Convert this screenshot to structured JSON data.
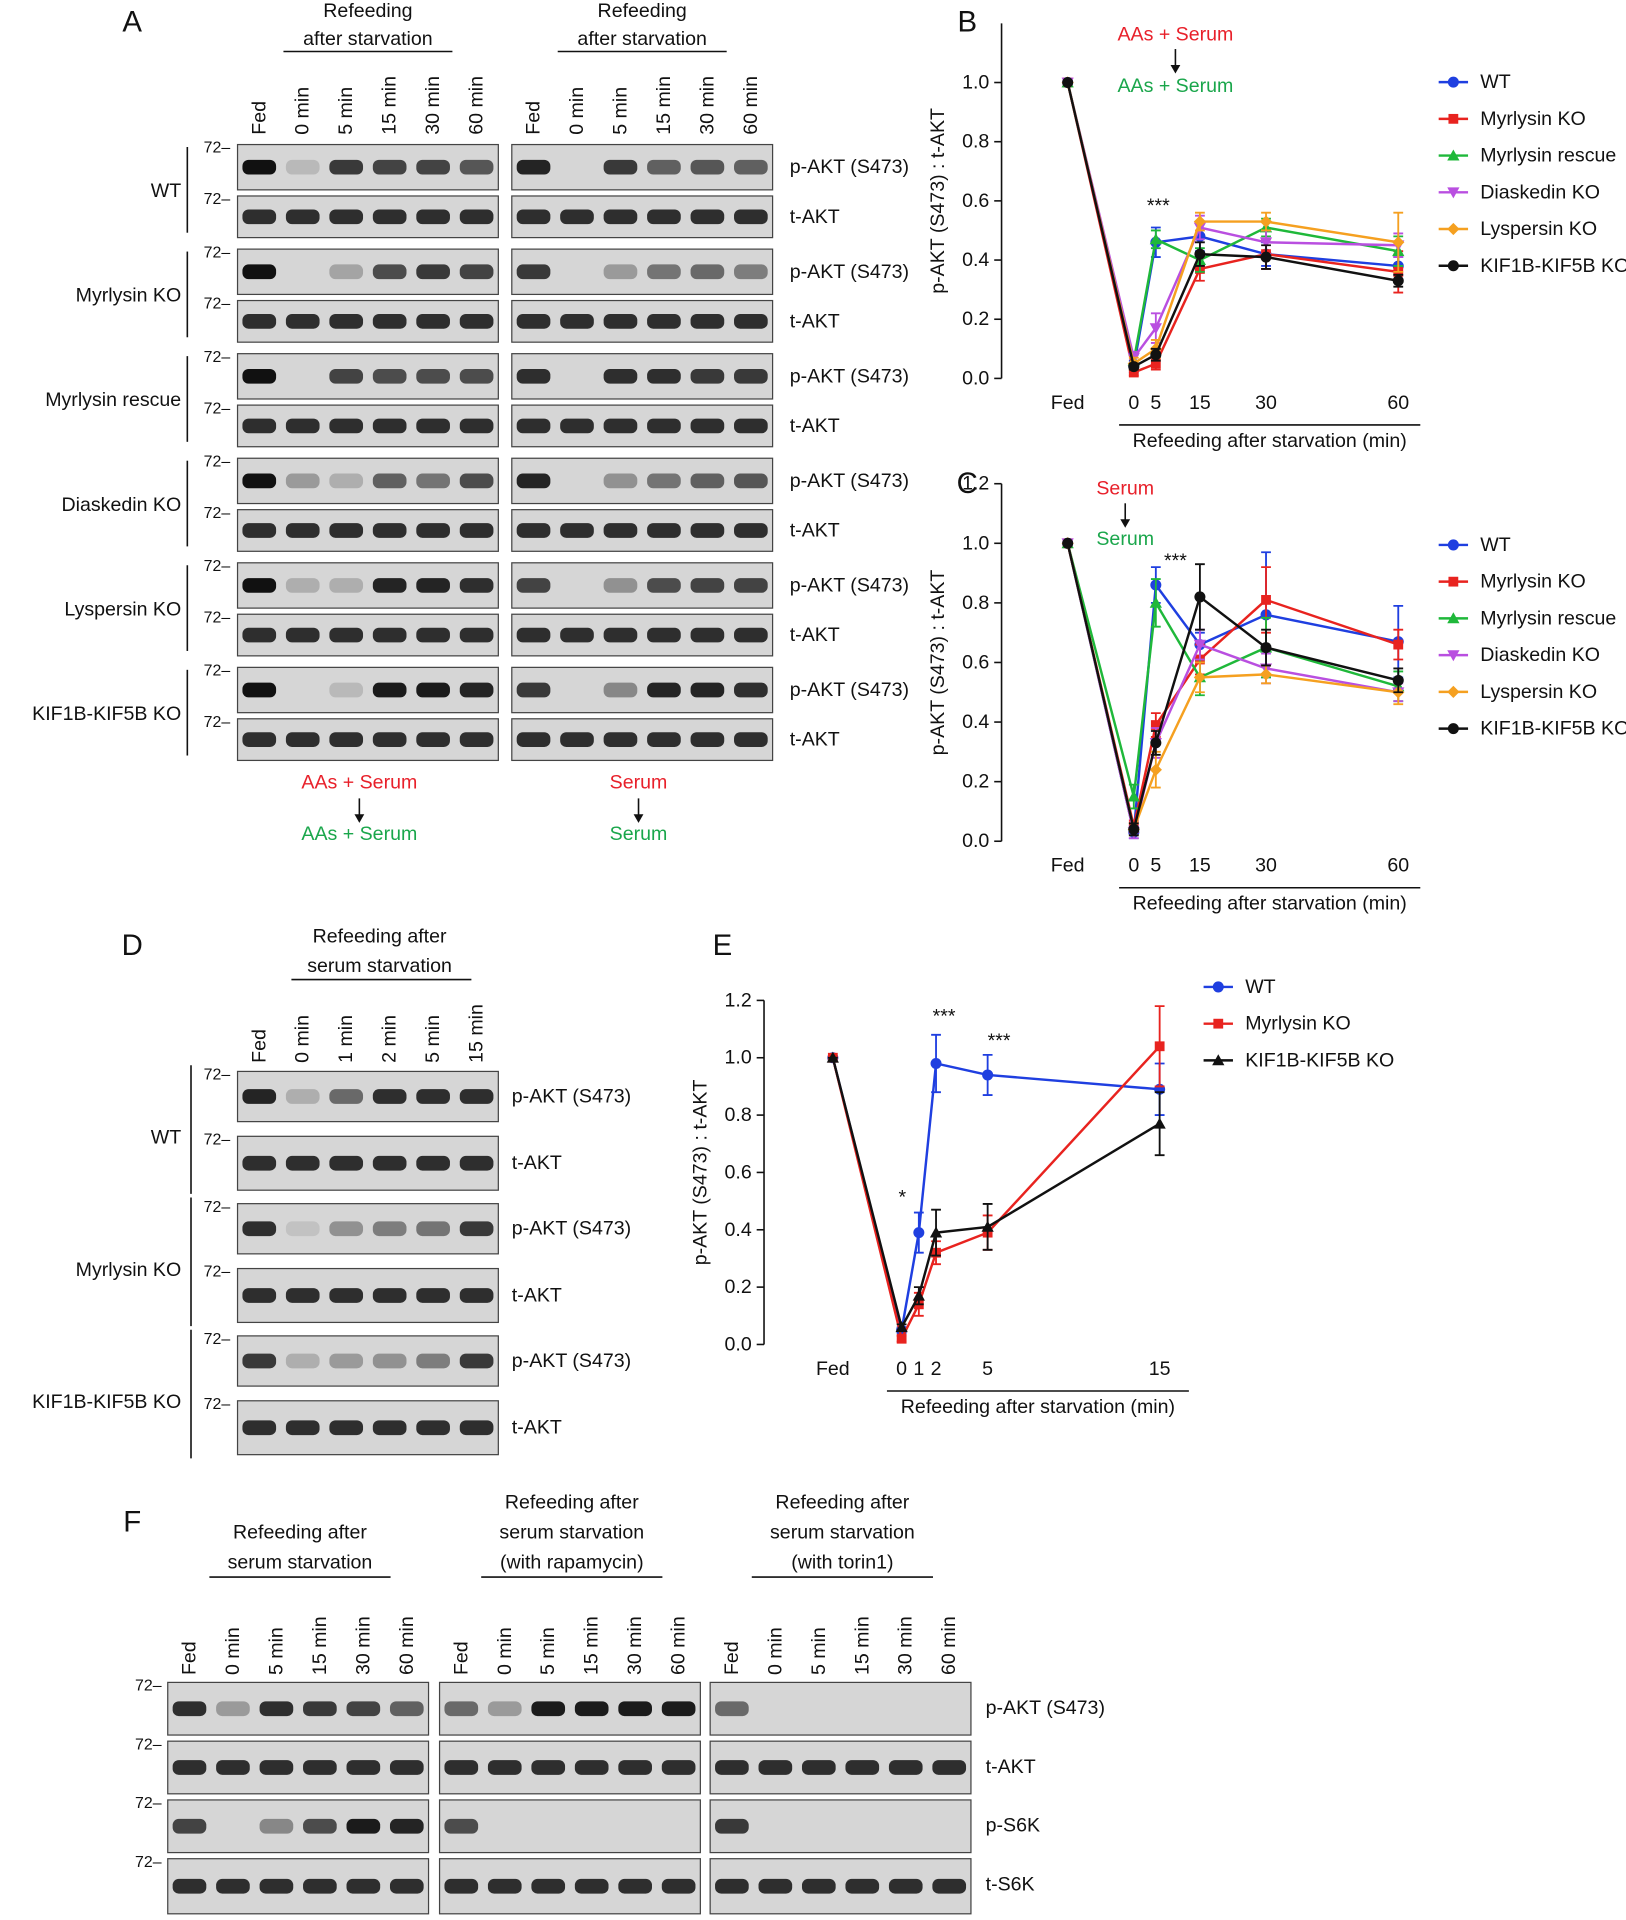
{
  "figure": {
    "panel_a": {
      "label": "A",
      "marker": "72–",
      "lanes": [
        "Fed",
        "0 min",
        "5 min",
        "15 min",
        "30 min",
        "60 min"
      ],
      "groups": [
        {
          "header": [
            "Refeeding",
            "after starvation"
          ],
          "footer": [
            "AAs + Serum",
            "AAs + Serum"
          ]
        },
        {
          "header": [
            "Refeeding",
            "after starvation"
          ],
          "footer": [
            "Serum",
            "Serum"
          ]
        }
      ],
      "rows": [
        {
          "name": "WT",
          "blots": [
            "p-AKT (S473)",
            "t-AKT"
          ]
        },
        {
          "name": "Myrlysin KO",
          "blots": [
            "p-AKT (S473)",
            "t-AKT"
          ]
        },
        {
          "name": "Myrlysin rescue",
          "blots": [
            "p-AKT (S473)",
            "t-AKT"
          ]
        },
        {
          "name": "Diaskedin KO",
          "blots": [
            "p-AKT (S473)",
            "t-AKT"
          ]
        },
        {
          "name": "Lyspersin KO",
          "blots": [
            "p-AKT (S473)",
            "t-AKT"
          ]
        },
        {
          "name": "KIF1B-KIF5B KO",
          "blots": [
            "p-AKT (S473)",
            "t-AKT"
          ]
        }
      ]
    },
    "panel_d": {
      "label": "D",
      "marker": "72–",
      "header": [
        "Refeeding after",
        "serum starvation"
      ],
      "lanes": [
        "Fed",
        "0 min",
        "1 min",
        "2 min",
        "5 min",
        "15 min"
      ],
      "rows": [
        {
          "name": "WT",
          "blots": [
            "p-AKT (S473)",
            "t-AKT"
          ]
        },
        {
          "name": "Myrlysin KO",
          "blots": [
            "p-AKT (S473)",
            "t-AKT"
          ]
        },
        {
          "name": "KIF1B-KIF5B KO",
          "blots": [
            "p-AKT (S473)",
            "t-AKT"
          ]
        }
      ]
    },
    "panel_f": {
      "label": "F",
      "marker": "72–",
      "groups": [
        {
          "header": [
            "Refeeding after",
            "serum starvation"
          ]
        },
        {
          "header": [
            "Refeeding after",
            "serum starvation",
            "(with rapamycin)"
          ]
        },
        {
          "header": [
            "Refeeding after",
            "serum starvation",
            "(with torin1)"
          ]
        }
      ],
      "lanes": [
        "Fed",
        "0 min",
        "5 min",
        "15 min",
        "30 min",
        "60 min"
      ],
      "blots": [
        "p-AKT (S473)",
        "t-AKT",
        "p-S6K",
        "t-S6K"
      ]
    }
  },
  "chart_data": [
    {
      "type": "line",
      "panel": "B",
      "ylabel": "p-AKT (S473) : t-AKT",
      "xlabel": "Refeeding after starvation (min)",
      "x": [
        -15,
        0,
        5,
        15,
        30,
        60
      ],
      "xticks": [
        {
          "value": -15,
          "label": "Fed"
        },
        0,
        5,
        15,
        30,
        60
      ],
      "xlim": [
        -30,
        65
      ],
      "ylim": [
        0,
        1.2
      ],
      "yticks": [
        {
          "value": 0,
          "label": "0.0"
        },
        0.2,
        0.4,
        0.6,
        0.8,
        {
          "value": 1,
          "label": "1.0"
        }
      ],
      "legend": "right",
      "series": [
        {
          "name": "WT",
          "color": "#1f3fe0",
          "marker": "circle",
          "values": [
            1.0,
            0.04,
            0.46,
            0.48,
            0.42,
            0.38
          ],
          "errors": [
            0,
            0.02,
            0.05,
            0.05,
            0.04,
            0.03
          ]
        },
        {
          "name": "Myrlysin KO",
          "color": "#e8231f",
          "marker": "square",
          "values": [
            1.0,
            0.02,
            0.05,
            0.37,
            0.42,
            0.36
          ],
          "errors": [
            0,
            0.01,
            0.02,
            0.04,
            0.05,
            0.07
          ]
        },
        {
          "name": "Myrlysin rescue",
          "color": "#1fb83a",
          "marker": "triangle",
          "values": [
            1.0,
            0.06,
            0.47,
            0.4,
            0.51,
            0.43
          ],
          "errors": [
            0,
            0.02,
            0.03,
            0.04,
            0.03,
            0.05
          ]
        },
        {
          "name": "Diaskedin KO",
          "color": "#b94fe0",
          "marker": "tridown",
          "values": [
            1.0,
            0.07,
            0.17,
            0.51,
            0.46,
            0.45
          ],
          "errors": [
            0,
            0.02,
            0.05,
            0.04,
            0.04,
            0.04
          ]
        },
        {
          "name": "Lyspersin KO",
          "color": "#f5a020",
          "marker": "diamond",
          "values": [
            1.0,
            0.05,
            0.1,
            0.53,
            0.53,
            0.46
          ],
          "errors": [
            0,
            0.02,
            0.03,
            0.03,
            0.03,
            0.1
          ]
        },
        {
          "name": "KIF1B-KIF5B KO",
          "color": "#111111",
          "marker": "circle",
          "values": [
            1.0,
            0.04,
            0.08,
            0.42,
            0.41,
            0.33
          ],
          "errors": [
            0,
            0.01,
            0.02,
            0.04,
            0.04,
            0.02
          ]
        }
      ],
      "annotations": [
        {
          "text": "AAs + Serum",
          "color": "#e8202a"
        },
        {
          "text": "AAs + Serum",
          "color": "#1aa64b"
        },
        {
          "text": "***",
          "color": "#111111"
        }
      ]
    },
    {
      "type": "line",
      "panel": "C",
      "ylabel": "p-AKT (S473) : t-AKT",
      "xlabel": "Refeeding after starvation (min)",
      "x": [
        -15,
        0,
        5,
        15,
        30,
        60
      ],
      "xticks": [
        {
          "value": -15,
          "label": "Fed"
        },
        0,
        5,
        15,
        30,
        60
      ],
      "xlim": [
        -30,
        65
      ],
      "ylim": [
        0,
        1.2
      ],
      "yticks": [
        {
          "value": 0,
          "label": "0.0"
        },
        0.2,
        0.4,
        0.6,
        0.8,
        {
          "value": 1,
          "label": "1.0"
        },
        1.2
      ],
      "legend": "right",
      "series": [
        {
          "name": "WT",
          "color": "#1f3fe0",
          "marker": "circle",
          "values": [
            1.0,
            0.03,
            0.86,
            0.66,
            0.76,
            0.67
          ],
          "errors": [
            0,
            0.02,
            0.06,
            0.04,
            0.21,
            0.12
          ]
        },
        {
          "name": "Myrlysin KO",
          "color": "#e8231f",
          "marker": "square",
          "values": [
            1.0,
            0.05,
            0.39,
            0.61,
            0.81,
            0.66
          ],
          "errors": [
            0,
            0.02,
            0.04,
            0.05,
            0.11,
            0.05
          ]
        },
        {
          "name": "Myrlysin rescue",
          "color": "#1fb83a",
          "marker": "triangle",
          "values": [
            1.0,
            0.15,
            0.8,
            0.55,
            0.65,
            0.52
          ],
          "errors": [
            0,
            0.04,
            0.08,
            0.06,
            0.1,
            0.05
          ]
        },
        {
          "name": "Diaskedin KO",
          "color": "#b94fe0",
          "marker": "tridown",
          "values": [
            1.0,
            0.03,
            0.33,
            0.66,
            0.58,
            0.5
          ],
          "errors": [
            0,
            0.02,
            0.05,
            0.05,
            0.05,
            0.03
          ]
        },
        {
          "name": "Lyspersin KO",
          "color": "#f5a020",
          "marker": "diamond",
          "values": [
            1.0,
            0.04,
            0.24,
            0.55,
            0.56,
            0.5
          ],
          "errors": [
            0,
            0.02,
            0.06,
            0.05,
            0.03,
            0.04
          ]
        },
        {
          "name": "KIF1B-KIF5B KO",
          "color": "#111111",
          "marker": "circle",
          "values": [
            1.0,
            0.04,
            0.33,
            0.82,
            0.65,
            0.54
          ],
          "errors": [
            0,
            0.02,
            0.04,
            0.11,
            0.06,
            0.04
          ]
        }
      ],
      "annotations": [
        {
          "text": "Serum",
          "color": "#e8202a"
        },
        {
          "text": "Serum",
          "color": "#1aa64b"
        },
        {
          "text": "***",
          "color": "#111111"
        }
      ]
    },
    {
      "type": "line",
      "panel": "E",
      "ylabel": "p-AKT (S473) : t-AKT",
      "xlabel": "Refeeding after starvation (min)",
      "x": [
        -4,
        0,
        1,
        2,
        5,
        15
      ],
      "xticks": [
        {
          "value": -4,
          "label": "Fed"
        },
        0,
        1,
        2,
        5,
        15
      ],
      "xlim": [
        -8,
        16.7
      ],
      "ylim": [
        0,
        1.2
      ],
      "yticks": [
        {
          "value": 0,
          "label": "0.0"
        },
        0.2,
        0.4,
        0.6,
        0.8,
        {
          "value": 1,
          "label": "1.0"
        },
        1.2
      ],
      "legend": "right",
      "series": [
        {
          "name": "WT",
          "color": "#1f3fe0",
          "marker": "circle",
          "values": [
            1.0,
            0.05,
            0.39,
            0.98,
            0.94,
            0.89
          ],
          "errors": [
            0,
            0.01,
            0.07,
            0.1,
            0.07,
            0.09
          ]
        },
        {
          "name": "Myrlysin KO",
          "color": "#e8231f",
          "marker": "square",
          "values": [
            1.0,
            0.02,
            0.14,
            0.32,
            0.39,
            1.04
          ],
          "errors": [
            0,
            0.01,
            0.04,
            0.04,
            0.06,
            0.14
          ]
        },
        {
          "name": "KIF1B-KIF5B KO",
          "color": "#111111",
          "marker": "triangle",
          "values": [
            1.0,
            0.06,
            0.17,
            0.39,
            0.41,
            0.77
          ],
          "errors": [
            0,
            0.01,
            0.03,
            0.08,
            0.08,
            0.11
          ]
        }
      ],
      "annotations": [
        {
          "text": "*",
          "color": "#111111"
        },
        {
          "text": "***",
          "color": "#111111"
        },
        {
          "text": "***",
          "color": "#111111"
        }
      ]
    }
  ]
}
